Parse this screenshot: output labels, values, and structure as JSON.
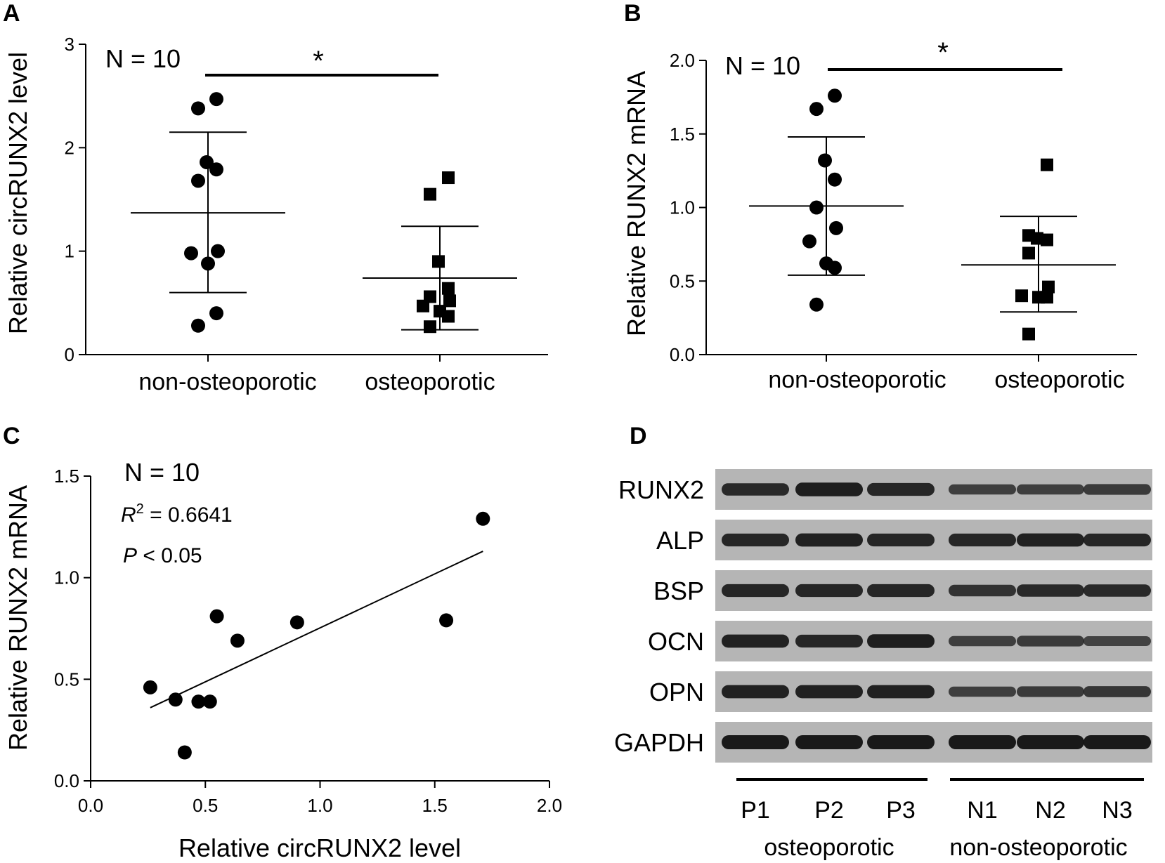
{
  "chart_data": [
    {
      "panel": "A",
      "type": "scatter",
      "ylabel": "Relative circRUNX2 level",
      "ylim": [
        0,
        3
      ],
      "yticks": [
        0,
        1,
        2,
        3
      ],
      "categories": [
        "non-osteoporotic",
        "osteoporotic"
      ],
      "annotation": "N = 10",
      "significance": "*",
      "series": [
        {
          "category": "non-osteoporotic",
          "marker": "circle",
          "values": [
            2.47,
            2.38,
            1.86,
            1.79,
            1.68,
            1.0,
            0.98,
            0.88,
            0.4,
            0.28
          ],
          "mean": 1.37,
          "sd_upper": 2.15,
          "sd_lower": 0.6
        },
        {
          "category": "osteoporotic",
          "marker": "square",
          "values": [
            1.71,
            1.55,
            0.9,
            0.64,
            0.56,
            0.52,
            0.47,
            0.42,
            0.37,
            0.27
          ],
          "mean": 0.74,
          "sd_upper": 1.24,
          "sd_lower": 0.24
        }
      ]
    },
    {
      "panel": "B",
      "type": "scatter",
      "ylabel": "Relative RUNX2 mRNA",
      "ylim": [
        0,
        2
      ],
      "yticks": [
        "0.0",
        "0.5",
        "1.0",
        "1.5",
        "2.0"
      ],
      "categories": [
        "non-osteoporotic",
        "osteoporotic"
      ],
      "annotation": "N = 10",
      "significance": "*",
      "series": [
        {
          "category": "non-osteoporotic",
          "marker": "circle",
          "values": [
            1.76,
            1.67,
            1.32,
            1.19,
            1.0,
            0.86,
            0.77,
            0.62,
            0.59,
            0.34
          ],
          "mean": 1.01,
          "sd_upper": 1.48,
          "sd_lower": 0.54
        },
        {
          "category": "osteoporotic",
          "marker": "square",
          "values": [
            1.29,
            0.81,
            0.79,
            0.78,
            0.69,
            0.46,
            0.4,
            0.39,
            0.39,
            0.14
          ],
          "mean": 0.61,
          "sd_upper": 0.94,
          "sd_lower": 0.29
        }
      ]
    },
    {
      "panel": "C",
      "type": "scatter",
      "xlabel": "Relative circRUNX2 level",
      "ylabel": "Relative RUNX2 mRNA",
      "xlim": [
        0,
        2
      ],
      "ylim": [
        0,
        1.5
      ],
      "xticks": [
        "0.0",
        "0.5",
        "1.0",
        "1.5",
        "2.0"
      ],
      "yticks": [
        "0.0",
        "0.5",
        "1.0",
        "1.5"
      ],
      "annotation": "N = 10",
      "r2_label": "R",
      "r2_value": " = 0.6641",
      "p_label": "P",
      "p_value": " < 0.05",
      "points": [
        {
          "x": 1.71,
          "y": 1.29
        },
        {
          "x": 1.55,
          "y": 0.79
        },
        {
          "x": 0.9,
          "y": 0.78
        },
        {
          "x": 0.55,
          "y": 0.81
        },
        {
          "x": 0.64,
          "y": 0.69
        },
        {
          "x": 0.26,
          "y": 0.46
        },
        {
          "x": 0.37,
          "y": 0.4
        },
        {
          "x": 0.47,
          "y": 0.39
        },
        {
          "x": 0.52,
          "y": 0.39
        },
        {
          "x": 0.41,
          "y": 0.14
        }
      ],
      "fit": {
        "x1": 0.26,
        "y1": 0.36,
        "x2": 1.71,
        "y2": 1.13
      }
    }
  ],
  "blot": {
    "panel": "D",
    "rows": [
      "RUNX2",
      "ALP",
      "BSP",
      "OCN",
      "OPN",
      "GAPDH"
    ],
    "lanes": [
      "P1",
      "P2",
      "P3",
      "N1",
      "N2",
      "N3"
    ],
    "groups": [
      "osteoporotic",
      "non-osteoporotic"
    ],
    "intensities": [
      [
        0.8,
        0.95,
        0.85,
        0.55,
        0.55,
        0.6
      ],
      [
        0.85,
        0.9,
        0.85,
        0.85,
        0.9,
        0.85
      ],
      [
        0.85,
        0.85,
        0.85,
        0.7,
        0.8,
        0.8
      ],
      [
        0.9,
        0.85,
        0.95,
        0.55,
        0.6,
        0.5
      ],
      [
        0.9,
        0.9,
        0.9,
        0.55,
        0.6,
        0.65
      ],
      [
        1.0,
        1.0,
        1.0,
        1.0,
        1.0,
        1.0
      ]
    ]
  }
}
